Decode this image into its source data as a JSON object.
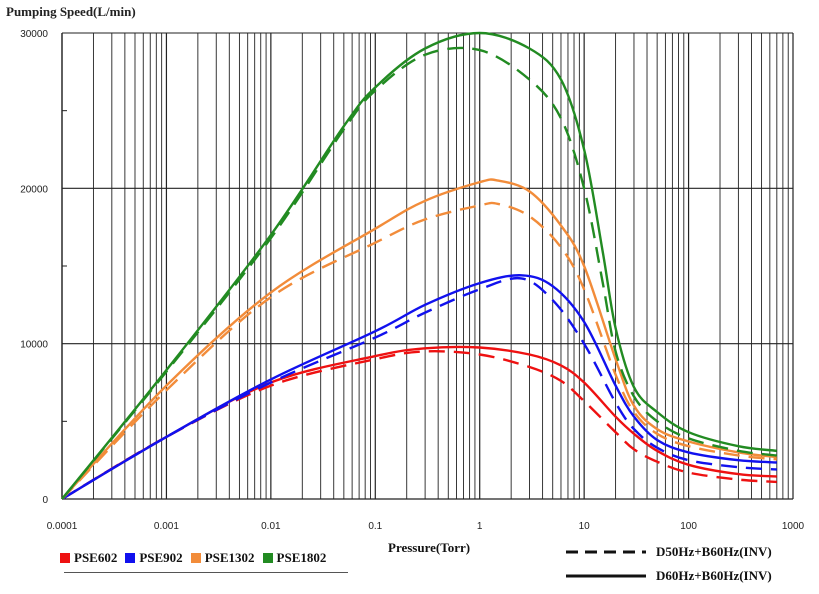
{
  "chart_data": {
    "type": "line",
    "ylabel": "Pumping Speed(L/min)",
    "xlabel": "Pressure(Torr)",
    "xscale": "log",
    "xlim": [
      0.0001,
      1000
    ],
    "ylim": [
      0,
      30000
    ],
    "x_tick_labels": [
      "0.0001",
      "0.001",
      "0.01",
      "0.1",
      "1",
      "10",
      "100",
      "1000"
    ],
    "x_tick_values": [
      0.0001,
      0.001,
      0.01,
      0.1,
      1,
      10,
      100,
      1000
    ],
    "y_tick_labels": [
      "0",
      "10000",
      "20000",
      "30000"
    ],
    "y_tick_values": [
      0,
      10000,
      20000,
      30000
    ],
    "grid": true,
    "series_legend": [
      {
        "name": "PSE602",
        "color": "#ee1111"
      },
      {
        "name": "PSE902",
        "color": "#1111ee"
      },
      {
        "name": "PSE1302",
        "color": "#f28c3a"
      },
      {
        "name": "PSE1802",
        "color": "#228b22"
      }
    ],
    "style_legend": [
      {
        "style": "dashed",
        "label": "D50Hz+B60Hz(INV)"
      },
      {
        "style": "solid",
        "label": "D60Hz+B60Hz(INV)"
      }
    ],
    "series": [
      {
        "name": "PSE602",
        "style": "solid",
        "color": "#ee1111",
        "x": [
          0.0001,
          0.001,
          0.01,
          0.1,
          0.3,
          1,
          3,
          6,
          10,
          20,
          30,
          50,
          100,
          300,
          700
        ],
        "y": [
          0,
          4000,
          7500,
          9200,
          9700,
          9750,
          9300,
          8600,
          7500,
          5300,
          4200,
          3100,
          2200,
          1600,
          1450
        ]
      },
      {
        "name": "PSE602",
        "style": "dashed",
        "color": "#ee1111",
        "x": [
          0.0001,
          0.001,
          0.01,
          0.1,
          0.3,
          1,
          3,
          6,
          10,
          20,
          30,
          50,
          100,
          300,
          700
        ],
        "y": [
          0,
          4000,
          7300,
          9000,
          9500,
          9300,
          8500,
          7600,
          6300,
          4300,
          3200,
          2400,
          1700,
          1250,
          1100
        ]
      },
      {
        "name": "PSE902",
        "style": "solid",
        "color": "#1111ee",
        "x": [
          0.0001,
          0.001,
          0.01,
          0.1,
          0.3,
          1,
          2.5,
          5,
          10,
          20,
          30,
          50,
          100,
          300,
          700
        ],
        "y": [
          0,
          4000,
          7700,
          10800,
          12500,
          13900,
          14400,
          13700,
          11400,
          7300,
          5300,
          3800,
          3000,
          2500,
          2350
        ]
      },
      {
        "name": "PSE902",
        "style": "dashed",
        "color": "#1111ee",
        "x": [
          0.0001,
          0.001,
          0.01,
          0.1,
          0.3,
          1,
          2.5,
          5,
          10,
          20,
          30,
          50,
          100,
          300,
          700
        ],
        "y": [
          0,
          4000,
          7500,
          10400,
          12000,
          13500,
          14200,
          12800,
          10000,
          6200,
          4500,
          3300,
          2500,
          2050,
          1900
        ]
      },
      {
        "name": "PSE1302",
        "style": "solid",
        "color": "#f28c3a",
        "x": [
          0.0001,
          0.001,
          0.01,
          0.1,
          0.3,
          1,
          1.5,
          3,
          6,
          10,
          20,
          30,
          50,
          100,
          300,
          700
        ],
        "y": [
          0,
          7300,
          13300,
          17400,
          19200,
          20400,
          20500,
          19800,
          17600,
          15000,
          9000,
          6000,
          4500,
          3700,
          3000,
          2700
        ]
      },
      {
        "name": "PSE1302",
        "style": "dashed",
        "color": "#f28c3a",
        "x": [
          0.0001,
          0.001,
          0.01,
          0.1,
          0.3,
          1,
          1.5,
          3,
          6,
          10,
          20,
          30,
          50,
          100,
          300,
          700
        ],
        "y": [
          0,
          7000,
          13000,
          16500,
          18000,
          18900,
          19000,
          18200,
          16200,
          13500,
          8000,
          5600,
          4200,
          3400,
          2800,
          2550
        ]
      },
      {
        "name": "PSE1802",
        "style": "solid",
        "color": "#228b22",
        "x": [
          0.0001,
          0.001,
          0.01,
          0.05,
          0.1,
          0.3,
          1,
          3,
          6,
          10,
          15,
          20,
          30,
          50,
          100,
          300,
          700
        ],
        "y": [
          0,
          8300,
          17000,
          24000,
          26500,
          29000,
          30000,
          29000,
          27000,
          22500,
          16000,
          11000,
          7200,
          5600,
          4300,
          3400,
          3100
        ]
      },
      {
        "name": "PSE1802",
        "style": "dashed",
        "color": "#228b22",
        "x": [
          0.0001,
          0.001,
          0.01,
          0.05,
          0.1,
          0.3,
          1,
          3,
          6,
          10,
          15,
          20,
          30,
          50,
          100,
          300,
          700
        ],
        "y": [
          0,
          8200,
          16800,
          23800,
          26300,
          28600,
          28900,
          27000,
          24500,
          20000,
          14000,
          9500,
          6600,
          5000,
          3900,
          3100,
          2800
        ]
      }
    ]
  }
}
